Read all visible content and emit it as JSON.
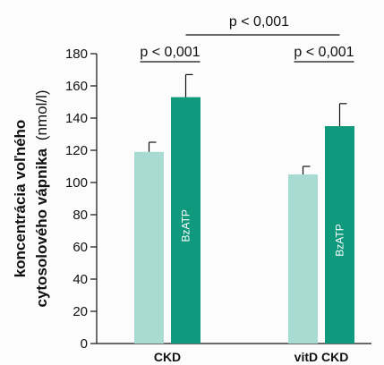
{
  "chart_data": {
    "type": "bar",
    "ylabel_line1": "koncentrácia voľného",
    "ylabel_line2_bold": "cytosolového vápnika",
    "ylabel_line2_unit": "(nmol/l)",
    "ylim": [
      0,
      180
    ],
    "yticks": [
      0,
      20,
      40,
      60,
      80,
      100,
      120,
      140,
      160,
      180
    ],
    "categories": [
      "CKD",
      "vitD CKD"
    ],
    "series": [
      {
        "values": [
          119,
          105
        ],
        "errors": [
          6,
          5
        ],
        "color": "#a8dbd2",
        "bar_label": ""
      },
      {
        "values": [
          153,
          135
        ],
        "errors": [
          14,
          14
        ],
        "color": "#0f9a7d",
        "bar_label": "BzATP"
      }
    ],
    "significance": [
      {
        "text": "p < 0,001",
        "type": "within",
        "category_index": 0
      },
      {
        "text": "p < 0,001",
        "type": "within",
        "category_index": 1
      },
      {
        "text": "p < 0,001",
        "type": "between"
      }
    ]
  }
}
